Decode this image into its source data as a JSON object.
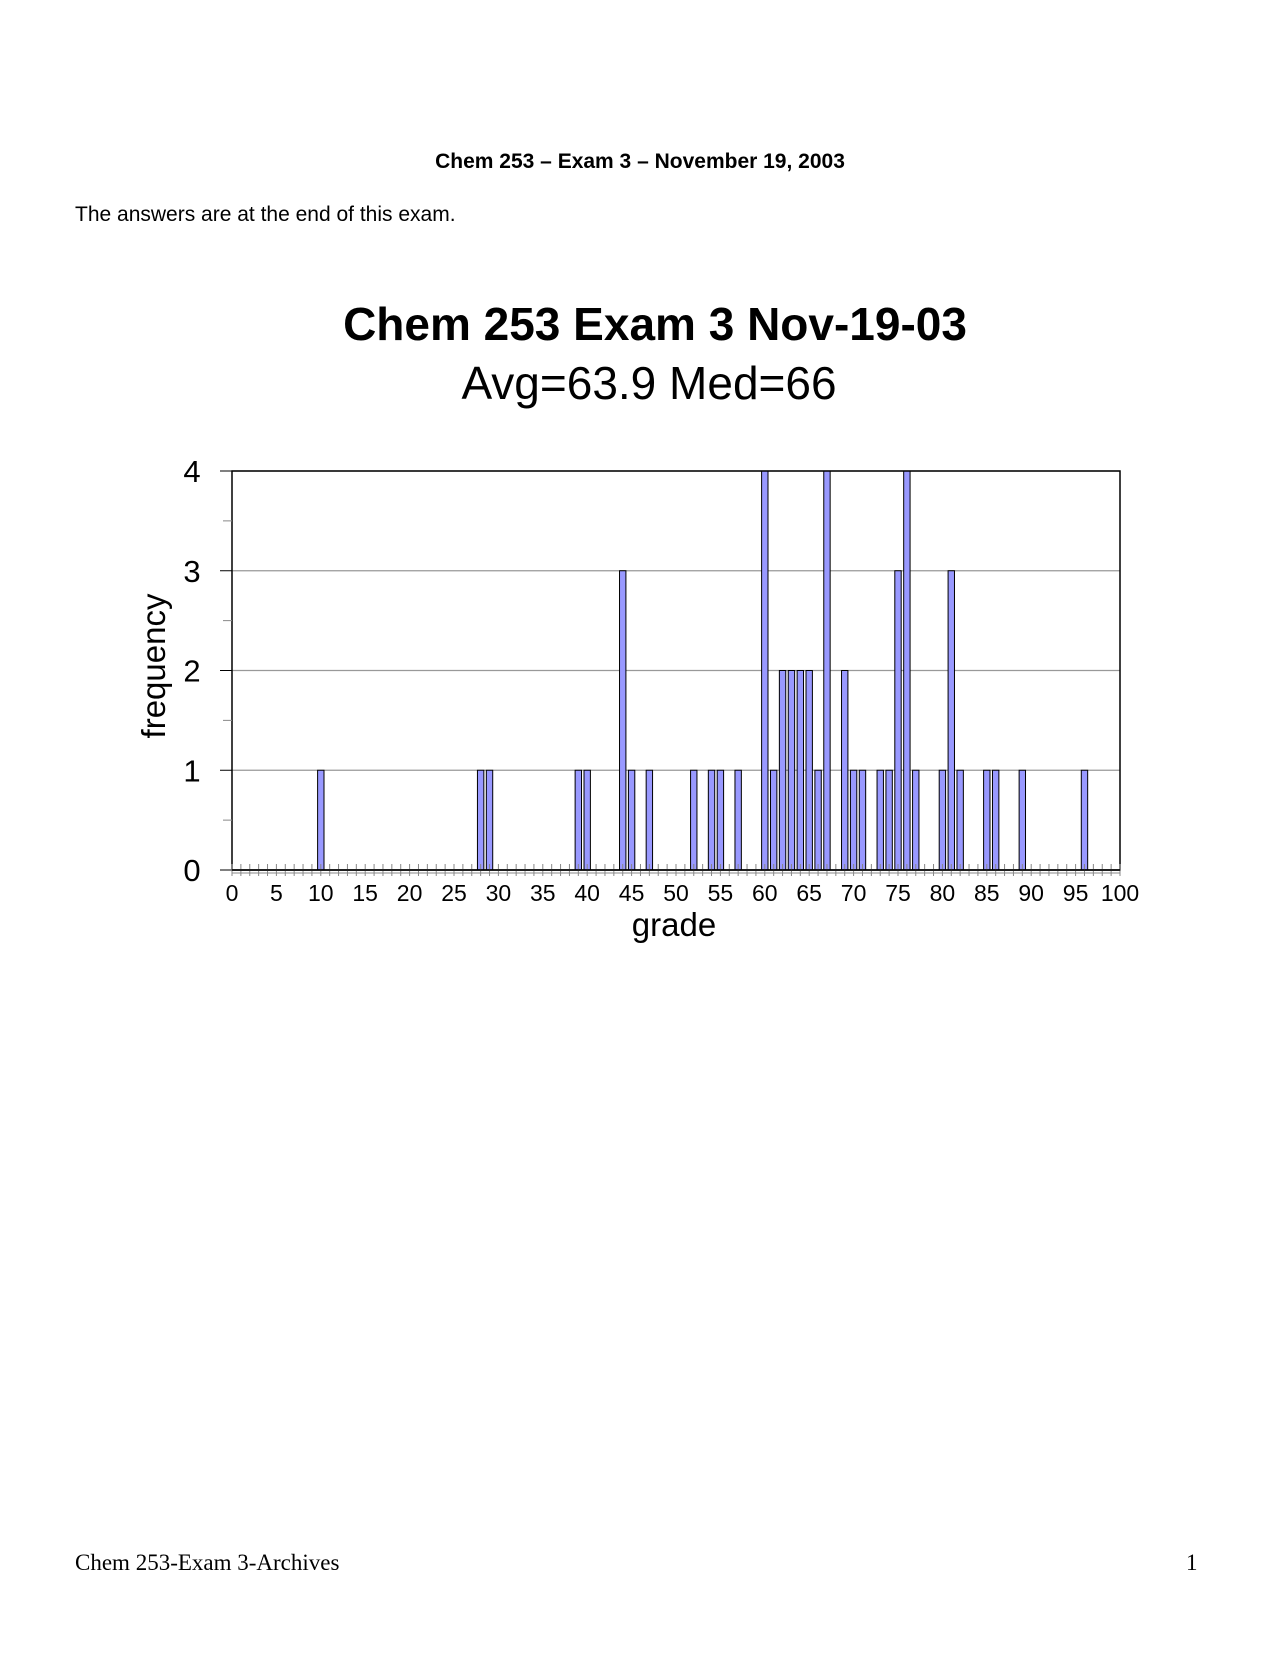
{
  "page": {
    "header_title": "Chem 253 – Exam 3 – November 19, 2003",
    "intro": "The answers are at the end of this exam.",
    "footer_left": "Chem 253-Exam 3-Archives",
    "page_number": "1"
  },
  "chart_data": {
    "type": "bar",
    "title": "Chem 253 Exam 3 Nov-19-03",
    "subtitle": "Avg=63.9 Med=66",
    "xlabel": "grade",
    "ylabel": "frequency",
    "xlim": [
      0,
      100
    ],
    "ylim": [
      0,
      4
    ],
    "x_ticks": [
      "0",
      "5",
      "10",
      "15",
      "20",
      "25",
      "30",
      "35",
      "40",
      "45",
      "50",
      "55",
      "60",
      "65",
      "70",
      "75",
      "80",
      "85",
      "90",
      "95",
      "100"
    ],
    "y_ticks": [
      "0",
      "1",
      "2",
      "3",
      "4"
    ],
    "grid": true,
    "bar_color": "#9999ff",
    "x": [
      10,
      28,
      29,
      39,
      40,
      44,
      45,
      47,
      52,
      54,
      55,
      57,
      60,
      61,
      62,
      63,
      64,
      65,
      66,
      67,
      69,
      70,
      71,
      73,
      74,
      75,
      76,
      77,
      80,
      81,
      82,
      85,
      86,
      89,
      96
    ],
    "values": [
      1,
      1,
      1,
      1,
      1,
      3,
      1,
      1,
      1,
      1,
      1,
      1,
      4,
      1,
      2,
      2,
      2,
      2,
      1,
      4,
      2,
      1,
      1,
      1,
      1,
      3,
      4,
      1,
      1,
      3,
      1,
      1,
      1,
      1,
      1
    ]
  }
}
